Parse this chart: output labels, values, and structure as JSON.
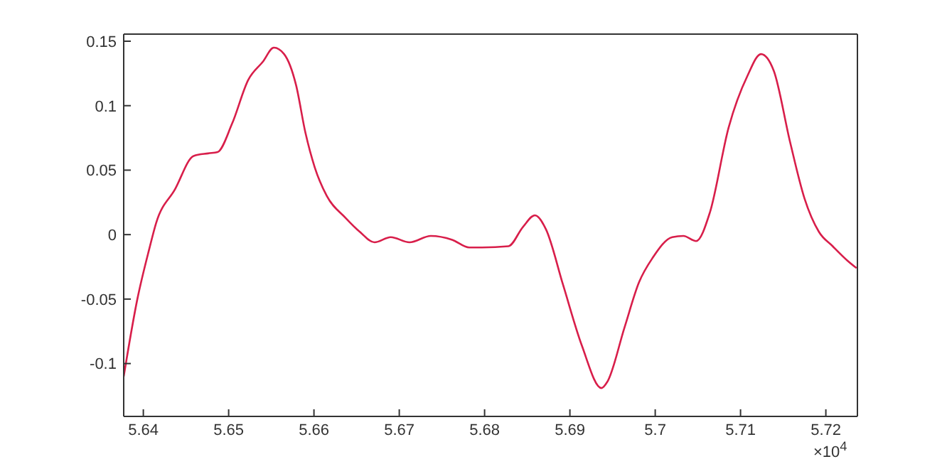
{
  "chart_data": {
    "type": "line",
    "x": [
      5.6377,
      5.6393,
      5.6407,
      5.6415,
      5.6437,
      5.6459,
      5.6476,
      5.6487,
      5.6504,
      5.6523,
      5.654,
      5.6553,
      5.6565,
      5.6579,
      5.659,
      5.6601,
      5.6615,
      5.6637,
      5.6654,
      5.6671,
      5.669,
      5.6712,
      5.6737,
      5.6762,
      5.6782,
      5.6797,
      5.6828,
      5.6845,
      5.6859,
      5.6872,
      5.6892,
      5.6914,
      5.6937,
      5.6944,
      5.6964,
      5.6981,
      5.6997,
      5.702,
      5.7033,
      5.7048,
      5.7064,
      5.7086,
      5.7108,
      5.7124,
      5.7139,
      5.7158,
      5.7175,
      5.7192,
      5.7208,
      5.7225,
      5.7236
    ],
    "series": [
      {
        "color": "#d81e4a",
        "values": [
          -0.11,
          -0.05,
          -0.011,
          0.009,
          0.035,
          0.061,
          0.063,
          0.064,
          0.086,
          0.12,
          0.134,
          0.145,
          0.14,
          0.116,
          0.079,
          0.052,
          0.03,
          0.013,
          0.002,
          -0.006,
          -0.002,
          -0.006,
          -0.001,
          -0.004,
          -0.01,
          -0.01,
          -0.009,
          0.006,
          0.015,
          0.004,
          -0.039,
          -0.086,
          -0.119,
          -0.114,
          -0.072,
          -0.037,
          -0.018,
          -0.002,
          -0.001,
          -0.005,
          0.017,
          0.083,
          0.123,
          0.14,
          0.127,
          0.072,
          0.028,
          0.002,
          -0.009,
          -0.02,
          -0.026
        ]
      }
    ],
    "xlim": [
      5.6377,
      5.7237
    ],
    "ylim": [
      -0.141,
      0.1555
    ],
    "xticks": [
      5.64,
      5.65,
      5.66,
      5.67,
      5.68,
      5.69,
      5.7,
      5.71,
      5.72
    ],
    "yticks": [
      -0.1,
      -0.05,
      0,
      0.05,
      0.1,
      0.15
    ],
    "annotations": [
      "×10$^{4}$"
    ],
    "grid": false,
    "legend": false,
    "marker": "none",
    "line_style": "solid"
  }
}
